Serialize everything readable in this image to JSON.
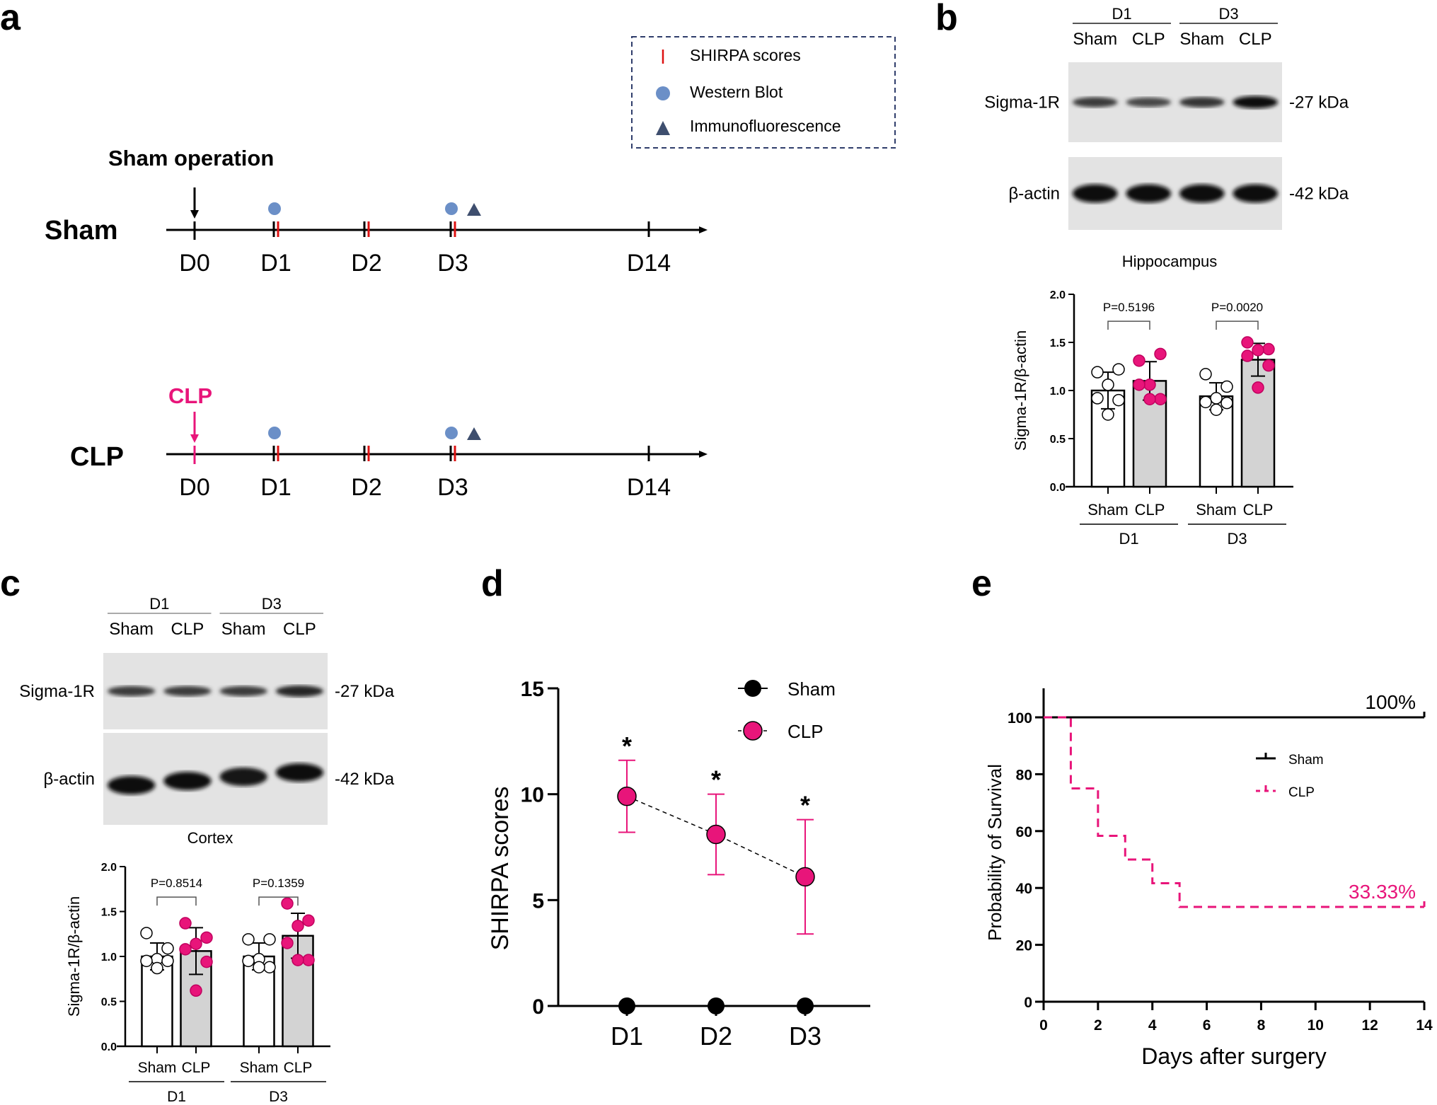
{
  "panels": {
    "a": {
      "letter": "a",
      "legend": [
        {
          "icon": "red-tick",
          "label": "SHIRPA scores"
        },
        {
          "icon": "blue-circle",
          "label": "Western Blot"
        },
        {
          "icon": "dark-triangle",
          "label": "Immunofluorescence"
        }
      ],
      "sham_operation_label": "Sham operation",
      "clp_operation_label": "CLP",
      "rows": [
        {
          "label": "Sham",
          "arrow_color": "#000000"
        },
        {
          "label": "CLP",
          "arrow_color": "#e8157a"
        }
      ],
      "timepoints": [
        "D0",
        "D1",
        "D2",
        "D3",
        "D14"
      ],
      "western_blot_days": [
        "D1",
        "D3"
      ],
      "immunofluorescence_days": [
        "D3"
      ],
      "shirpa_days": [
        "D1",
        "D2",
        "D3"
      ]
    },
    "b": {
      "letter": "b",
      "group_labels": [
        "D1",
        "D3"
      ],
      "lane_labels": [
        "Sham",
        "CLP",
        "Sham",
        "CLP"
      ],
      "bands": [
        {
          "name": "Sigma-1R",
          "marker": "-27 kDa",
          "intensity": [
            0.55,
            0.45,
            0.6,
            0.95
          ]
        },
        {
          "name": "β-actin",
          "marker": "-42 kDa",
          "intensity": [
            1,
            1,
            1,
            1
          ]
        }
      ],
      "tissue": "Hippocampus"
    },
    "c": {
      "letter": "c",
      "group_labels": [
        "D1",
        "D3"
      ],
      "lane_labels": [
        "Sham",
        "CLP",
        "Sham",
        "CLP"
      ],
      "bands": [
        {
          "name": "Sigma-1R",
          "marker": "-27 kDa",
          "intensity": [
            0.55,
            0.55,
            0.55,
            0.75
          ]
        },
        {
          "name": "β-actin",
          "marker": "-42 kDa",
          "intensity": [
            1,
            0.95,
            0.9,
            1
          ]
        }
      ],
      "tissue": "Cortex"
    },
    "d": {
      "letter": "d"
    },
    "e": {
      "letter": "e"
    }
  },
  "chart_data": [
    {
      "id": "b-bar",
      "type": "bar",
      "title": "Hippocampus",
      "ylabel": "Sigma-1R/β-actin",
      "ylim": [
        0,
        2.0
      ],
      "yticks": [
        "0.0",
        "0.5",
        "1.0",
        "1.5",
        "2.0"
      ],
      "groups": [
        "D1",
        "D3"
      ],
      "categories": [
        "Sham",
        "CLP",
        "Sham",
        "CLP"
      ],
      "series": [
        {
          "group": "D1",
          "name": "Sham",
          "mean": 1.0,
          "sd": 0.19,
          "fill": "#ffffff",
          "points": [
            1.19,
            1.22,
            1.06,
            0.92,
            0.9,
            0.75
          ]
        },
        {
          "group": "D1",
          "name": "CLP",
          "mean": 1.1,
          "sd": 0.2,
          "fill": "#d3d3d3",
          "points": [
            1.31,
            1.38,
            1.06,
            1.06,
            0.91,
            0.91
          ]
        },
        {
          "group": "D3",
          "name": "Sham",
          "mean": 0.94,
          "sd": 0.14,
          "fill": "#ffffff",
          "points": [
            1.17,
            1.04,
            0.92,
            0.88,
            0.87,
            0.8
          ]
        },
        {
          "group": "D3",
          "name": "CLP",
          "mean": 1.32,
          "sd": 0.17,
          "fill": "#d3d3d3",
          "points": [
            1.5,
            1.43,
            1.42,
            1.36,
            1.26,
            1.03
          ]
        }
      ],
      "pvalues": [
        {
          "group": "D1",
          "label": "P=0.5196"
        },
        {
          "group": "D3",
          "label": "P=0.0020"
        }
      ]
    },
    {
      "id": "c-bar",
      "type": "bar",
      "title": "Cortex",
      "ylabel": "Sigma-1R/β-actin",
      "ylim": [
        0,
        2.0
      ],
      "yticks": [
        "0.0",
        "0.5",
        "1.0",
        "1.5",
        "2.0"
      ],
      "groups": [
        "D1",
        "D3"
      ],
      "categories": [
        "Sham",
        "CLP",
        "Sham",
        "CLP"
      ],
      "series": [
        {
          "group": "D1",
          "name": "Sham",
          "mean": 1.0,
          "sd": 0.15,
          "fill": "#ffffff",
          "points": [
            1.26,
            1.09,
            0.97,
            0.95,
            0.95,
            0.87
          ]
        },
        {
          "group": "D1",
          "name": "CLP",
          "mean": 1.06,
          "sd": 0.26,
          "fill": "#d3d3d3",
          "points": [
            1.37,
            1.21,
            1.14,
            1.08,
            0.94,
            0.62
          ]
        },
        {
          "group": "D3",
          "name": "Sham",
          "mean": 1.0,
          "sd": 0.15,
          "fill": "#ffffff",
          "points": [
            1.19,
            1.19,
            0.97,
            0.95,
            0.88,
            0.88
          ]
        },
        {
          "group": "D3",
          "name": "CLP",
          "mean": 1.23,
          "sd": 0.25,
          "fill": "#d3d3d3",
          "points": [
            1.59,
            1.4,
            1.34,
            1.15,
            0.96,
            0.96
          ]
        }
      ],
      "pvalues": [
        {
          "group": "D1",
          "label": "P=0.8514"
        },
        {
          "group": "D3",
          "label": "P=0.1359"
        }
      ]
    },
    {
      "id": "d-line",
      "type": "line",
      "title": "",
      "xlabel": "",
      "ylabel": "SHIRPA scores",
      "x": [
        "D1",
        "D2",
        "D3"
      ],
      "ylim": [
        0,
        15
      ],
      "yticks": [
        "0",
        "5",
        "10",
        "15"
      ],
      "series": [
        {
          "name": "Sham",
          "color": "#000000",
          "values": [
            0,
            0,
            0
          ],
          "err": [
            0,
            0,
            0
          ]
        },
        {
          "name": "CLP",
          "color": "#e8157a",
          "values": [
            9.9,
            8.1,
            6.1
          ],
          "err_low": [
            8.2,
            6.2,
            3.4
          ],
          "err_high": [
            11.6,
            10.0,
            8.8
          ]
        }
      ],
      "annotations": [
        "*",
        "*",
        "*"
      ],
      "legend": "top-right"
    },
    {
      "id": "e-km",
      "type": "line",
      "title": "",
      "xlabel": "Days after surgery",
      "ylabel": "Probability of Survival",
      "xlim": [
        0,
        14
      ],
      "ylim": [
        0,
        100
      ],
      "xticks": [
        "0",
        "2",
        "4",
        "6",
        "8",
        "10",
        "12",
        "14"
      ],
      "yticks": [
        "0",
        "20",
        "40",
        "60",
        "80",
        "100"
      ],
      "series": [
        {
          "name": "Sham",
          "color": "#000000",
          "steps": [
            [
              0,
              100
            ],
            [
              14,
              100
            ]
          ],
          "end_label": "100%"
        },
        {
          "name": "CLP",
          "color": "#e8157a",
          "steps": [
            [
              0,
              100
            ],
            [
              1,
              75
            ],
            [
              2,
              58.33
            ],
            [
              3,
              50
            ],
            [
              4,
              41.67
            ],
            [
              5,
              33.33
            ],
            [
              14,
              33.33
            ]
          ],
          "end_label": "33.33%"
        }
      ],
      "legend": "right"
    }
  ]
}
